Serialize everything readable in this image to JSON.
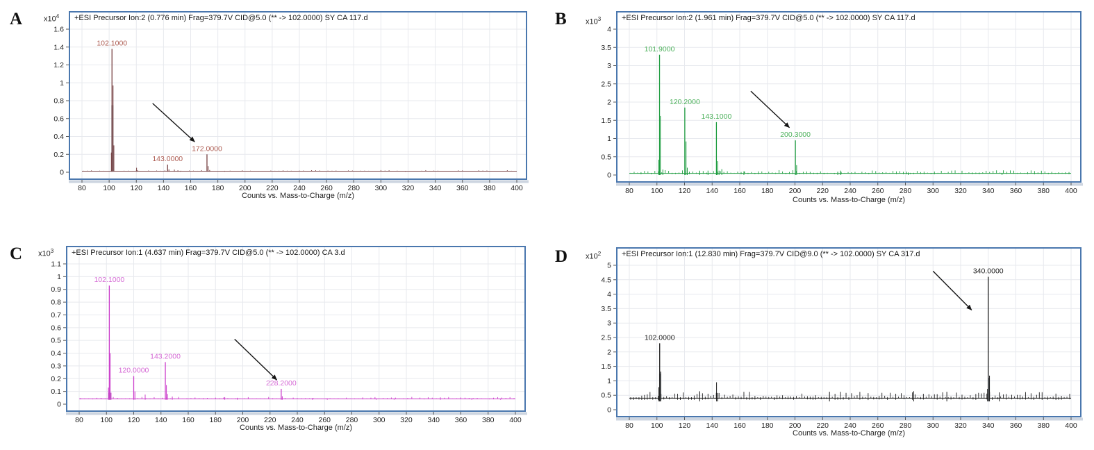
{
  "figure": {
    "frame_color": "#4a77ae",
    "grid_color": "#e7e9ee",
    "tick_text_color": "#222222",
    "arrow_color": "#141414",
    "background": "#ffffff"
  },
  "chart_data": [
    {
      "type": "bar",
      "subtype": "mass-spectrum",
      "letter": "A",
      "header": "+ESI Precursor Ion:2 (0.776 min) Frag=379.7V CID@5.0 (** -> 102.0000) SY CA 117.d",
      "y_unit": {
        "base": "x10",
        "exp": "4"
      },
      "xlabel": "Counts vs. Mass-to-Charge (m/z)",
      "series_color": "#774244",
      "label_color": "#ad5c52",
      "xlim": [
        80,
        400
      ],
      "ylim": [
        0,
        1.6
      ],
      "x_ticks": [
        80,
        100,
        120,
        140,
        160,
        180,
        200,
        220,
        240,
        260,
        280,
        300,
        320,
        340,
        360,
        380,
        400
      ],
      "y_ticks": [
        "0",
        "0.2",
        "0.4",
        "0.6",
        "0.8",
        "1",
        "1.2",
        "1.4",
        "1.6"
      ],
      "labeled_peaks": [
        {
          "mz": 102.1,
          "label": "102.1000",
          "intensity": 1.38
        },
        {
          "mz": 143.0,
          "label": "143.0000",
          "intensity": 0.085
        },
        {
          "mz": 172.0,
          "label": "172.0000",
          "intensity": 0.2
        }
      ],
      "minor_peaks": [
        [
          102.9,
          0.97
        ],
        [
          103.5,
          0.3
        ],
        [
          101.6,
          0.22
        ],
        [
          120.2,
          0.05
        ],
        [
          121,
          0.022
        ],
        [
          144,
          0.032
        ],
        [
          148,
          0.03
        ],
        [
          150.6,
          0.022
        ],
        [
          152.3,
          0.016
        ],
        [
          172.9,
          0.068
        ],
        [
          174,
          0.025
        ],
        [
          185,
          0.016
        ],
        [
          318,
          0.014
        ]
      ],
      "gray_bars": [
        [
          102.4,
          0.75
        ]
      ],
      "baseline": 0.012,
      "noise": {
        "seed": 11,
        "amp": 0.012,
        "step": 3
      },
      "arrow": {
        "from": [
          132,
          0.77
        ],
        "to": [
          163,
          0.34
        ]
      }
    },
    {
      "type": "bar",
      "subtype": "mass-spectrum",
      "letter": "B",
      "header": "+ESI Precursor Ion:2 (1.961 min) Frag=379.7V CID@5.0 (** -> 102.0000) SY CA 117.d",
      "y_unit": {
        "base": "x10",
        "exp": "3"
      },
      "xlabel": "Counts vs. Mass-to-Charge (m/z)",
      "series_color": "#1d9c3f",
      "label_color": "#4bb05a",
      "xlim": [
        80,
        400
      ],
      "ylim": [
        0,
        4
      ],
      "x_ticks": [
        80,
        100,
        120,
        140,
        160,
        180,
        200,
        220,
        240,
        260,
        280,
        300,
        320,
        340,
        360,
        380,
        400
      ],
      "y_ticks": [
        "0",
        "0.5",
        "1",
        "1.5",
        "2",
        "2.5",
        "3",
        "3.5",
        "4"
      ],
      "labeled_peaks": [
        {
          "mz": 101.9,
          "label": "101.9000",
          "intensity": 3.3
        },
        {
          "mz": 120.2,
          "label": "120.2000",
          "intensity": 1.85
        },
        {
          "mz": 143.1,
          "label": "143.1000",
          "intensity": 1.45
        },
        {
          "mz": 200.3,
          "label": "200.3000",
          "intensity": 0.95
        }
      ],
      "minor_peaks": [
        [
          102.5,
          1.62
        ],
        [
          101.3,
          0.42
        ],
        [
          121.1,
          0.92
        ],
        [
          122,
          0.2
        ],
        [
          144,
          0.38
        ],
        [
          145,
          0.12
        ],
        [
          201.2,
          0.27
        ],
        [
          104.3,
          0.15
        ],
        [
          131,
          0.11
        ],
        [
          137,
          0.12
        ],
        [
          147,
          0.16
        ],
        [
          163,
          0.1
        ],
        [
          231,
          0.09
        ],
        [
          233,
          0.12
        ],
        [
          282,
          0.07
        ],
        [
          350,
          0.06
        ]
      ],
      "gray_bars": [],
      "baseline": 0.045,
      "noise": {
        "seed": 23,
        "amp": 0.09,
        "step": 2.5
      },
      "arrow": {
        "from": [
          168,
          2.3
        ],
        "to": [
          196,
          1.3
        ]
      }
    },
    {
      "type": "bar",
      "subtype": "mass-spectrum",
      "letter": "C",
      "header": "+ESI Precursor Ion:1 (4.637 min) Frag=379.7V CID@5.0 (** -> 102.0000) CA 3.d",
      "y_unit": {
        "base": "x10",
        "exp": "3"
      },
      "xlabel": "Counts vs. Mass-to-Charge (m/z)",
      "series_color": "#cb3ecb",
      "label_color": "#d56ad5",
      "xlim": [
        80,
        400
      ],
      "ylim": [
        0,
        1.1
      ],
      "x_ticks": [
        80,
        100,
        120,
        140,
        160,
        180,
        200,
        220,
        240,
        260,
        280,
        300,
        320,
        340,
        360,
        380,
        400
      ],
      "y_ticks": [
        "0",
        "0.1",
        "0.2",
        "0.3",
        "0.4",
        "0.5",
        "0.6",
        "0.7",
        "0.8",
        "0.9",
        "1",
        "1.1"
      ],
      "labeled_peaks": [
        {
          "mz": 102.1,
          "label": "102.1000",
          "intensity": 0.93
        },
        {
          "mz": 120.0,
          "label": "120.0000",
          "intensity": 0.22
        },
        {
          "mz": 143.2,
          "label": "143.2000",
          "intensity": 0.33
        },
        {
          "mz": 228.2,
          "label": "228.2000",
          "intensity": 0.12
        }
      ],
      "minor_peaks": [
        [
          102.8,
          0.4
        ],
        [
          101.4,
          0.13
        ],
        [
          103.4,
          0.09
        ],
        [
          120.9,
          0.1
        ],
        [
          128.4,
          0.075
        ],
        [
          144,
          0.15
        ],
        [
          144.8,
          0.08
        ],
        [
          148.3,
          0.06
        ],
        [
          186.8,
          0.055
        ],
        [
          196,
          0.05
        ],
        [
          229,
          0.062
        ],
        [
          251,
          0.048
        ],
        [
          262,
          0.045
        ],
        [
          298,
          0.045
        ],
        [
          311,
          0.042
        ],
        [
          345,
          0.042
        ],
        [
          368,
          0.045
        ],
        [
          389,
          0.042
        ]
      ],
      "gray_bars": [
        [
          102.4,
          0.09
        ]
      ],
      "baseline": 0.042,
      "noise": {
        "seed": 37,
        "amp": 0.015,
        "step": 3
      },
      "arrow": {
        "from": [
          194,
          0.51
        ],
        "to": [
          225,
          0.19
        ]
      }
    },
    {
      "type": "bar",
      "subtype": "mass-spectrum",
      "letter": "D",
      "header": "+ESI Precursor Ion:1 (12.830 min) Frag=379.7V CID@9.0 (** -> 102.0000) SY CA 317.d",
      "y_unit": {
        "base": "x10",
        "exp": "2"
      },
      "xlabel": "Counts vs. Mass-to-Charge (m/z)",
      "series_color": "#1c1c1c",
      "label_color": "#1c1c1c",
      "xlim": [
        80,
        400
      ],
      "ylim": [
        0,
        5
      ],
      "x_ticks": [
        80,
        100,
        120,
        140,
        160,
        180,
        200,
        220,
        240,
        260,
        280,
        300,
        320,
        340,
        360,
        380,
        400
      ],
      "y_ticks": [
        "0",
        "0.5",
        "1",
        "1.5",
        "2",
        "2.5",
        "3",
        "3.5",
        "4",
        "4.5",
        "5"
      ],
      "labeled_peaks": [
        {
          "mz": 102.0,
          "label": "102.0000",
          "intensity": 2.3
        },
        {
          "mz": 340.0,
          "label": "340.0000",
          "intensity": 4.6
        }
      ],
      "minor_peaks": [
        [
          102.7,
          1.32
        ],
        [
          101.4,
          0.78
        ],
        [
          143.2,
          0.95
        ],
        [
          144,
          0.58
        ],
        [
          340.9,
          1.18
        ],
        [
          339.5,
          0.72
        ],
        [
          131,
          0.64
        ],
        [
          225,
          0.62
        ],
        [
          286,
          0.64
        ],
        [
          310,
          0.62
        ],
        [
          348,
          0.6
        ]
      ],
      "gray_bars": [
        [
          102.35,
          1.25
        ],
        [
          340.4,
          1.1
        ]
      ],
      "baseline": 0.4,
      "noise": {
        "seed": 53,
        "amp": 0.22,
        "step": 2
      },
      "arrow": {
        "from": [
          300,
          4.8
        ],
        "to": [
          328,
          3.45
        ]
      }
    }
  ]
}
